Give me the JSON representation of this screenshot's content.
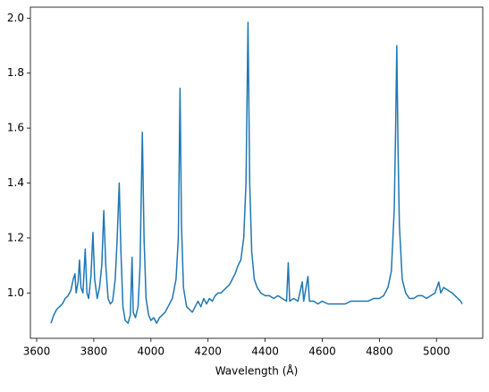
{
  "chart_data": {
    "type": "line",
    "xlabel": "Wavelength (Å)",
    "x": [
      3650,
      3660,
      3670,
      3680,
      3690,
      3700,
      3710,
      3720,
      3728,
      3734,
      3738,
      3745,
      3750,
      3755,
      3762,
      3770,
      3776,
      3782,
      3790,
      3797,
      3803,
      3812,
      3820,
      3828,
      3835,
      3842,
      3850,
      3858,
      3866,
      3875,
      3882,
      3889,
      3895,
      3902,
      3910,
      3920,
      3928,
      3934,
      3938,
      3946,
      3955,
      3962,
      3970,
      3976,
      3983,
      3992,
      4000,
      4010,
      4020,
      4030,
      4040,
      4050,
      4060,
      4075,
      4088,
      4096,
      4102,
      4107,
      4114,
      4125,
      4135,
      4145,
      4155,
      4165,
      4175,
      4185,
      4195,
      4205,
      4215,
      4225,
      4235,
      4245,
      4255,
      4265,
      4275,
      4285,
      4295,
      4305,
      4315,
      4325,
      4333,
      4340,
      4346,
      4353,
      4362,
      4372,
      4385,
      4400,
      4415,
      4430,
      4445,
      4460,
      4475,
      4481,
      4486,
      4500,
      4515,
      4530,
      4535,
      4550,
      4555,
      4570,
      4585,
      4600,
      4620,
      4640,
      4660,
      4680,
      4700,
      4720,
      4740,
      4760,
      4780,
      4800,
      4815,
      4830,
      4842,
      4852,
      4857,
      4861,
      4865,
      4870,
      4880,
      4892,
      4905,
      4920,
      4935,
      4950,
      4965,
      4980,
      4995,
      5008,
      5015,
      5025,
      5040,
      5055,
      5065,
      5075,
      5085,
      5090
    ],
    "series": [
      {
        "color": "#1f77b4",
        "values": [
          0.89,
          0.92,
          0.94,
          0.95,
          0.96,
          0.98,
          0.99,
          1.01,
          1.05,
          1.07,
          1.0,
          1.04,
          1.12,
          1.02,
          1.0,
          1.16,
          1.0,
          0.98,
          1.06,
          1.22,
          1.05,
          0.98,
          1.02,
          1.1,
          1.3,
          1.1,
          0.98,
          0.96,
          0.97,
          1.05,
          1.2,
          1.4,
          1.15,
          0.95,
          0.9,
          0.89,
          0.92,
          1.13,
          0.93,
          0.91,
          0.95,
          1.1,
          1.585,
          1.2,
          0.98,
          0.92,
          0.9,
          0.91,
          0.89,
          0.91,
          0.92,
          0.93,
          0.95,
          0.98,
          1.05,
          1.2,
          1.745,
          1.25,
          1.02,
          0.95,
          0.94,
          0.93,
          0.95,
          0.97,
          0.95,
          0.98,
          0.96,
          0.98,
          0.97,
          0.99,
          1.0,
          1.0,
          1.01,
          1.02,
          1.03,
          1.05,
          1.07,
          1.1,
          1.12,
          1.2,
          1.4,
          1.985,
          1.4,
          1.15,
          1.05,
          1.02,
          1.0,
          0.99,
          0.99,
          0.98,
          0.99,
          0.98,
          0.97,
          1.11,
          0.97,
          0.98,
          0.97,
          1.04,
          0.97,
          1.06,
          0.97,
          0.97,
          0.96,
          0.97,
          0.96,
          0.96,
          0.96,
          0.96,
          0.97,
          0.97,
          0.97,
          0.97,
          0.98,
          0.98,
          0.99,
          1.02,
          1.08,
          1.3,
          1.6,
          1.9,
          1.55,
          1.25,
          1.05,
          1.0,
          0.98,
          0.98,
          0.99,
          0.99,
          0.98,
          0.99,
          1.0,
          1.04,
          1.0,
          1.02,
          1.01,
          1.0,
          0.99,
          0.98,
          0.97,
          0.96
        ]
      }
    ],
    "xlim": [
      3578,
      5162
    ],
    "xticks": [
      3600,
      3800,
      4000,
      4200,
      4400,
      4600,
      4800,
      5000
    ],
    "ylim": [
      0.835,
      2.04
    ],
    "yticks": [
      {
        "value": 1,
        "label": "1.0"
      },
      1.2,
      1.4,
      1.6,
      1.8,
      {
        "value": 2,
        "label": "2.0"
      }
    ]
  }
}
